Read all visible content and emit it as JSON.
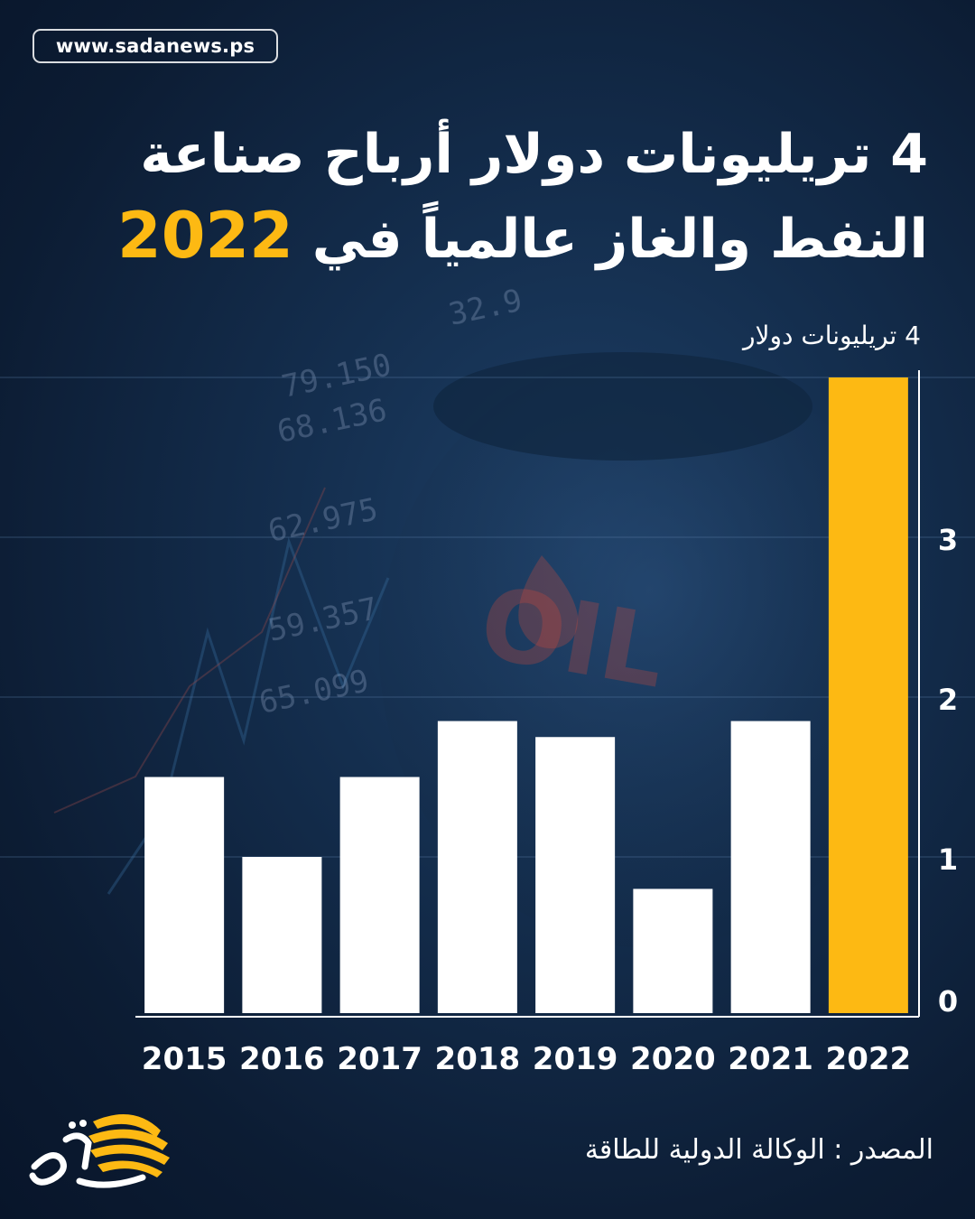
{
  "header": {
    "site_url": "www.sadanews.ps"
  },
  "title": {
    "line1": "4 تريليونات دولار أرباح صناعة",
    "line2_text": "النفط والغاز عالمياً في",
    "line2_highlight": "2022"
  },
  "chart_data": {
    "type": "bar",
    "unit_label": "4 تريليونات دولار",
    "categories": [
      "2015",
      "2016",
      "2017",
      "2018",
      "2019",
      "2020",
      "2021",
      "2022"
    ],
    "values": [
      1.5,
      1.0,
      1.5,
      1.85,
      1.75,
      0.8,
      1.85,
      4.0
    ],
    "yticks": [
      0,
      1,
      2,
      3
    ],
    "ylim": [
      0,
      4
    ],
    "y_axis_side": "right",
    "colors": {
      "default": "#ffffff",
      "highlight": "#fdb913"
    },
    "highlight_category": "2022"
  },
  "footer": {
    "source": "المصدر : الوكالة الدولية للطاقة",
    "logo_icon": "sada-news-logo-icon"
  },
  "background": {
    "barrel_label": "OIL"
  }
}
